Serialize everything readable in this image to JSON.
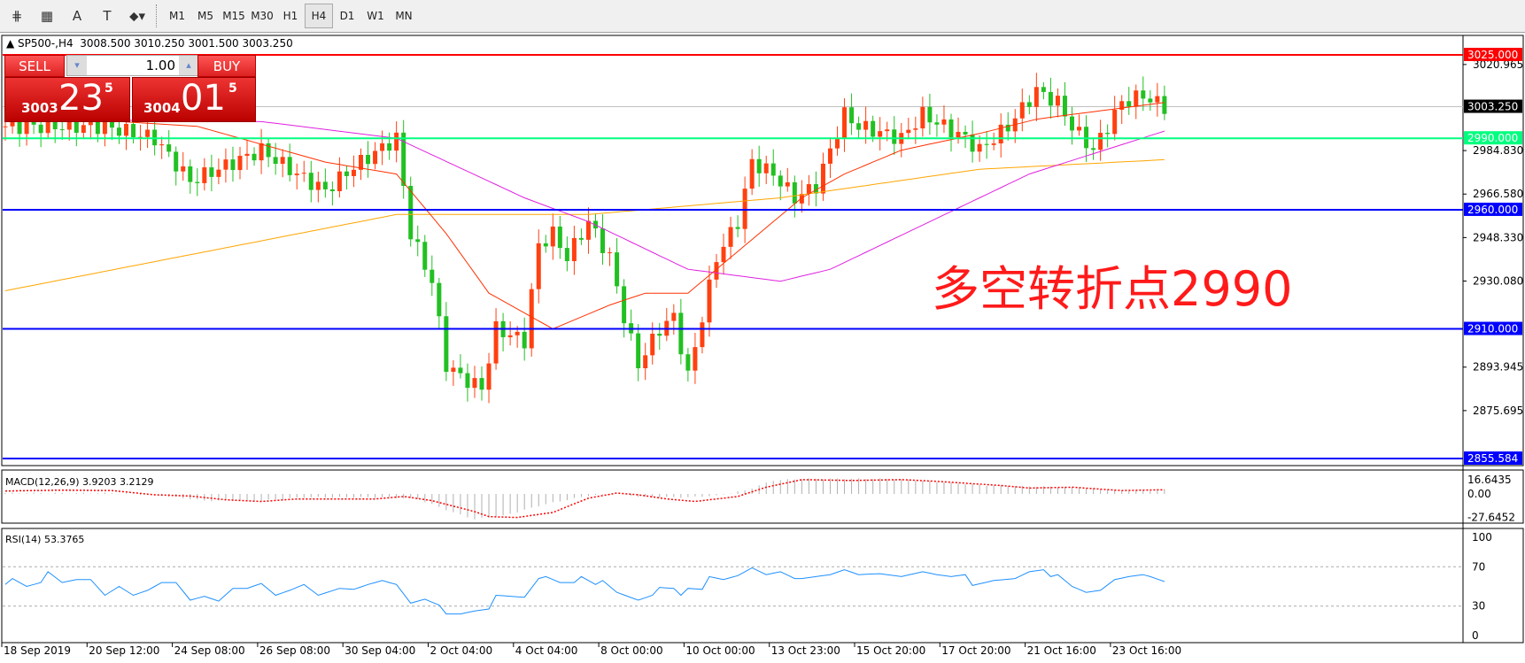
{
  "toolbar": {
    "tools": [
      {
        "icon": "fibonacci-icon",
        "glyph": "⋕"
      },
      {
        "icon": "fibo-grid-icon",
        "glyph": "▦"
      },
      {
        "icon": "text-icon",
        "glyph": "A"
      },
      {
        "icon": "text-label-icon",
        "glyph": "T"
      },
      {
        "icon": "arrows-icon",
        "glyph": "⬥▾"
      }
    ],
    "timeframes": [
      "M1",
      "M5",
      "M15",
      "M30",
      "H1",
      "H4",
      "D1",
      "W1",
      "MN"
    ],
    "active_timeframe": "H4"
  },
  "symbol_line": "SP500-,H4  3008.500 3010.250 3001.500 3003.250",
  "trade_panel": {
    "sell_label": "SELL",
    "buy_label": "BUY",
    "lot": "1.00",
    "sell": {
      "big_figure": "3003",
      "pips": "23",
      "fraction": "5"
    },
    "buy": {
      "big_figure": "3004",
      "pips": "01",
      "fraction": "5"
    }
  },
  "annotation": "多空转折点2990",
  "colors": {
    "bull": "#ff4010",
    "bear": "#22c022",
    "ma_fast": "#ff3000",
    "ma_mid": "#e020e0",
    "ma_slow": "#ffa500",
    "rsi": "#1e90ff",
    "macd_signal": "#ff0000"
  },
  "chart_data": [
    {
      "type": "candlestick",
      "symbol": "SP500-",
      "timeframe": "H4",
      "ylim": [
        2855.584,
        3025
      ],
      "price_ticks": [
        "3020.965",
        "2984.830",
        "2966.580",
        "2948.330",
        "2930.080",
        "2893.945",
        "2875.695"
      ],
      "current_price": "3003.250",
      "levels": [
        {
          "value": "3025.000",
          "color": "#ff0000"
        },
        {
          "value": "2990.000",
          "color": "#00ff7f"
        },
        {
          "value": "2960.000",
          "color": "#0000ff"
        },
        {
          "value": "2910.000",
          "color": "#0000ff"
        },
        {
          "value": "2855.584",
          "color": "#0000ff"
        }
      ],
      "close_anchors": [
        [
          0,
          2995
        ],
        [
          1,
          2995
        ],
        [
          14,
          2995
        ],
        [
          21,
          2990
        ],
        [
          26,
          2972
        ],
        [
          36,
          2985
        ],
        [
          41,
          2975
        ],
        [
          45,
          2968
        ],
        [
          49,
          2978
        ],
        [
          55,
          2990
        ],
        [
          57,
          2950
        ],
        [
          60,
          2930
        ],
        [
          62,
          2895
        ],
        [
          64,
          2890
        ],
        [
          67,
          2885
        ],
        [
          69,
          2910
        ],
        [
          73,
          2905
        ],
        [
          75,
          2945
        ],
        [
          77,
          2950
        ],
        [
          79,
          2940
        ],
        [
          82,
          2955
        ],
        [
          85,
          2940
        ],
        [
          87,
          2915
        ],
        [
          89,
          2895
        ],
        [
          92,
          2910
        ],
        [
          94,
          2915
        ],
        [
          96,
          2890
        ],
        [
          98,
          2915
        ],
        [
          100,
          2940
        ],
        [
          103,
          2955
        ],
        [
          105,
          2980
        ],
        [
          108,
          2975
        ],
        [
          111,
          2965
        ],
        [
          114,
          2970
        ],
        [
          118,
          3000
        ],
        [
          120,
          2995
        ],
        [
          126,
          2990
        ],
        [
          129,
          3000
        ],
        [
          135,
          2990
        ],
        [
          137,
          2985
        ],
        [
          141,
          2995
        ],
        [
          145,
          3010
        ],
        [
          148,
          3005
        ],
        [
          150,
          2995
        ],
        [
          153,
          2985
        ],
        [
          155,
          2995
        ],
        [
          157,
          3005
        ],
        [
          160,
          3008
        ],
        [
          163,
          3003
        ]
      ],
      "ma_slow": [
        [
          0,
          2926
        ],
        [
          55,
          2958
        ],
        [
          82,
          2958
        ],
        [
          109,
          2965
        ],
        [
          137,
          2977
        ],
        [
          163,
          2981
        ]
      ],
      "ma_mid": [
        [
          0,
          2998
        ],
        [
          36,
          2997
        ],
        [
          55,
          2990
        ],
        [
          73,
          2965
        ],
        [
          82,
          2955
        ],
        [
          96,
          2935
        ],
        [
          109,
          2930
        ],
        [
          116,
          2935
        ],
        [
          130,
          2955
        ],
        [
          144,
          2975
        ],
        [
          163,
          2993
        ]
      ],
      "ma_fast": [
        [
          0,
          3000
        ],
        [
          27,
          2995
        ],
        [
          45,
          2980
        ],
        [
          55,
          2975
        ],
        [
          62,
          2950
        ],
        [
          68,
          2925
        ],
        [
          77,
          2910
        ],
        [
          85,
          2920
        ],
        [
          90,
          2925
        ],
        [
          96,
          2925
        ],
        [
          104,
          2945
        ],
        [
          112,
          2965
        ],
        [
          118,
          2975
        ],
        [
          126,
          2985
        ],
        [
          137,
          2992
        ],
        [
          145,
          2998
        ],
        [
          150,
          3000
        ],
        [
          163,
          3005
        ]
      ],
      "time_labels": [
        "18 Sep 2019",
        "20 Sep 12:00",
        "24 Sep 08:00",
        "26 Sep 08:00",
        "30 Sep 04:00",
        "2 Oct 04:00",
        "4 Oct 04:00",
        "8 Oct 00:00",
        "10 Oct 00:00",
        "13 Oct 23:00",
        "15 Oct 20:00",
        "17 Oct 20:00",
        "21 Oct 16:00",
        "23 Oct 16:00"
      ]
    },
    {
      "type": "bar",
      "title": "MACD(12,26,9) 3.9203 3.2129",
      "ticks": [
        "16.6435",
        "0.00",
        "-27.6452"
      ],
      "histogram": [
        [
          0,
          1
        ],
        [
          15,
          1
        ],
        [
          22,
          -2
        ],
        [
          28,
          -8
        ],
        [
          36,
          -8
        ],
        [
          42,
          -4
        ],
        [
          54,
          -4
        ],
        [
          58,
          -6
        ],
        [
          63,
          -22
        ],
        [
          66,
          -30
        ],
        [
          70,
          -26
        ],
        [
          76,
          -12
        ],
        [
          82,
          -2
        ],
        [
          86,
          0
        ],
        [
          90,
          -4
        ],
        [
          96,
          -4
        ],
        [
          100,
          -2
        ],
        [
          104,
          4
        ],
        [
          108,
          16
        ],
        [
          112,
          18
        ],
        [
          125,
          18
        ],
        [
          130,
          15
        ],
        [
          138,
          10
        ],
        [
          150,
          8
        ],
        [
          157,
          4
        ],
        [
          163,
          4
        ]
      ],
      "signal": [
        [
          0,
          3.5
        ],
        [
          8,
          4.5
        ],
        [
          15,
          4
        ],
        [
          21,
          -1
        ],
        [
          26,
          -2.5
        ],
        [
          31,
          -7
        ],
        [
          36,
          -9
        ],
        [
          41,
          -6
        ],
        [
          52,
          -6
        ],
        [
          56,
          -3
        ],
        [
          60,
          -8
        ],
        [
          66,
          -21
        ],
        [
          68,
          -27
        ],
        [
          72,
          -28
        ],
        [
          77,
          -22
        ],
        [
          82,
          -5
        ],
        [
          86,
          1
        ],
        [
          89,
          -1
        ],
        [
          93,
          -6
        ],
        [
          97,
          -9
        ],
        [
          103,
          -3
        ],
        [
          107,
          8
        ],
        [
          112,
          17
        ],
        [
          119,
          16
        ],
        [
          126,
          17
        ],
        [
          131,
          15
        ],
        [
          140,
          10
        ],
        [
          144,
          7
        ],
        [
          150,
          8
        ],
        [
          157,
          4
        ],
        [
          163,
          5
        ]
      ]
    },
    {
      "type": "line",
      "title": "RSI(14) 53.3765",
      "ticks": [
        "100",
        "70",
        "30",
        "0"
      ],
      "ylim": [
        0,
        100
      ],
      "levels": [
        70,
        30
      ],
      "values": [
        [
          0,
          52
        ],
        [
          1,
          58
        ],
        [
          3,
          50
        ],
        [
          5,
          54
        ],
        [
          6,
          65
        ],
        [
          8,
          54
        ],
        [
          10,
          57
        ],
        [
          12,
          57
        ],
        [
          14,
          41
        ],
        [
          16,
          50
        ],
        [
          18,
          41
        ],
        [
          20,
          46
        ],
        [
          22,
          54
        ],
        [
          24,
          54
        ],
        [
          26,
          36
        ],
        [
          28,
          40
        ],
        [
          30,
          35
        ],
        [
          32,
          48
        ],
        [
          34,
          48
        ],
        [
          36,
          53
        ],
        [
          38,
          41
        ],
        [
          40,
          46
        ],
        [
          42,
          52
        ],
        [
          44,
          41
        ],
        [
          47,
          48
        ],
        [
          49,
          47
        ],
        [
          51,
          52
        ],
        [
          53,
          56
        ],
        [
          55,
          52
        ],
        [
          57,
          33
        ],
        [
          59,
          37
        ],
        [
          61,
          31
        ],
        [
          62,
          22
        ],
        [
          64,
          22
        ],
        [
          66,
          25
        ],
        [
          68,
          27
        ],
        [
          69,
          41
        ],
        [
          71,
          40
        ],
        [
          73,
          39
        ],
        [
          75,
          58
        ],
        [
          76,
          60
        ],
        [
          78,
          54
        ],
        [
          80,
          54
        ],
        [
          81,
          60
        ],
        [
          83,
          52
        ],
        [
          84,
          56
        ],
        [
          86,
          44
        ],
        [
          89,
          36
        ],
        [
          91,
          41
        ],
        [
          92,
          49
        ],
        [
          94,
          48
        ],
        [
          95,
          41
        ],
        [
          96,
          48
        ],
        [
          98,
          47
        ],
        [
          99,
          60
        ],
        [
          101,
          57
        ],
        [
          103,
          61
        ],
        [
          105,
          69
        ],
        [
          107,
          62
        ],
        [
          109,
          65
        ],
        [
          111,
          58
        ],
        [
          112,
          58
        ],
        [
          114,
          60
        ],
        [
          116,
          62
        ],
        [
          118,
          67
        ],
        [
          120,
          62
        ],
        [
          123,
          63
        ],
        [
          126,
          60
        ],
        [
          129,
          65
        ],
        [
          131,
          62
        ],
        [
          133,
          60
        ],
        [
          135,
          62
        ],
        [
          136,
          51
        ],
        [
          139,
          56
        ],
        [
          142,
          58
        ],
        [
          144,
          65
        ],
        [
          146,
          67
        ],
        [
          147,
          60
        ],
        [
          148,
          62
        ],
        [
          150,
          50
        ],
        [
          152,
          44
        ],
        [
          154,
          46
        ],
        [
          156,
          57
        ],
        [
          158,
          60
        ],
        [
          160,
          62
        ],
        [
          161,
          60
        ],
        [
          163,
          55
        ]
      ]
    }
  ]
}
